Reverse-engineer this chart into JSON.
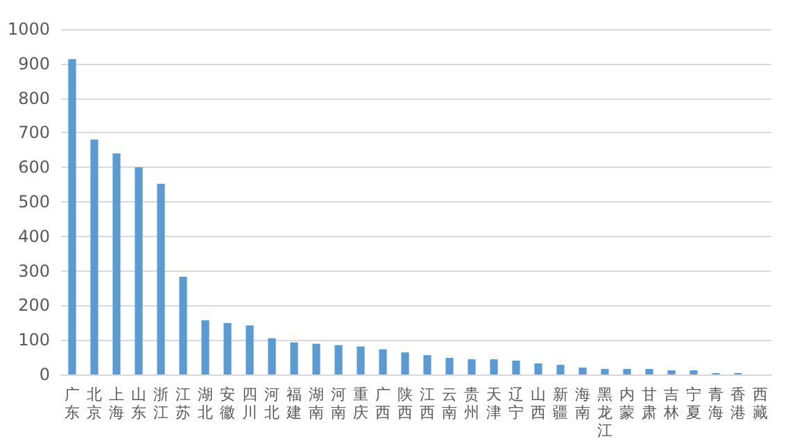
{
  "chart_data": {
    "type": "bar",
    "categories": [
      "广东",
      "北京",
      "上海",
      "山东",
      "浙江",
      "江苏",
      "湖北",
      "安徽",
      "四川",
      "河北",
      "福建",
      "湖南",
      "河南",
      "重庆",
      "广西",
      "陕西",
      "江西",
      "云南",
      "贵州",
      "天津",
      "辽宁",
      "山西",
      "新疆",
      "海南",
      "黑龙江",
      "内蒙",
      "甘肃",
      "吉林",
      "宁夏",
      "青海",
      "香港",
      "西藏"
    ],
    "values": [
      913,
      680,
      640,
      600,
      552,
      283,
      157,
      149,
      142,
      105,
      93,
      89,
      85,
      81,
      73,
      64,
      56,
      48,
      44,
      44,
      40,
      32,
      28,
      20,
      16,
      16,
      16,
      12,
      12,
      4,
      4,
      0
    ],
    "color": "#5b9bd5",
    "ylim": [
      0,
      1000
    ],
    "yticks": [
      0,
      100,
      200,
      300,
      400,
      500,
      600,
      700,
      800,
      900,
      1000
    ],
    "grid": "y"
  }
}
